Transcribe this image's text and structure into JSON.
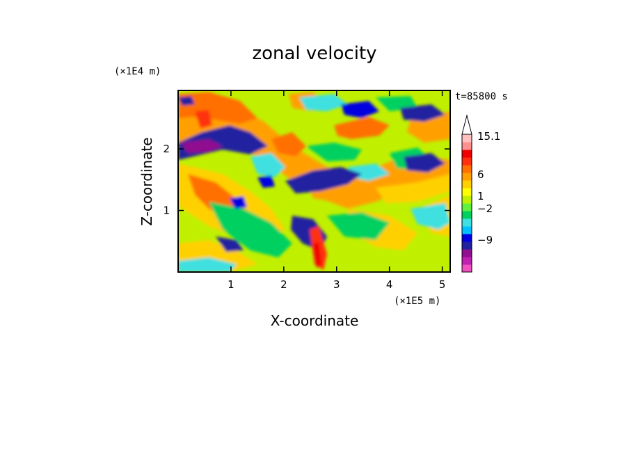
{
  "chart_data": {
    "type": "heatmap",
    "title": "zonal velocity",
    "xlabel": "X-coordinate",
    "ylabel": "Z-coordinate",
    "x_unit": "(×1E5 m)",
    "y_unit": "(×1E4 m)",
    "time_label": "t=85800 s",
    "xlim": [
      0,
      5.15
    ],
    "ylim": [
      0,
      2.95
    ],
    "x_ticks": [
      "1",
      "2",
      "3",
      "4",
      "5"
    ],
    "y_ticks": [
      "1",
      "2"
    ],
    "colorbar": {
      "labels": [
        "15.1",
        "6",
        "1",
        "−2",
        "−9"
      ],
      "colors": [
        "#f050c0",
        "#c020b0",
        "#901090",
        "#2020a0",
        "#0000e0",
        "#00c0ff",
        "#40e0e0",
        "#00d060",
        "#60f040",
        "#c0f000",
        "#ffff00",
        "#ffd000",
        "#ffa000",
        "#ff7000",
        "#ff3010",
        "#f00000",
        "#ff9090",
        "#ffc0c0"
      ]
    }
  }
}
